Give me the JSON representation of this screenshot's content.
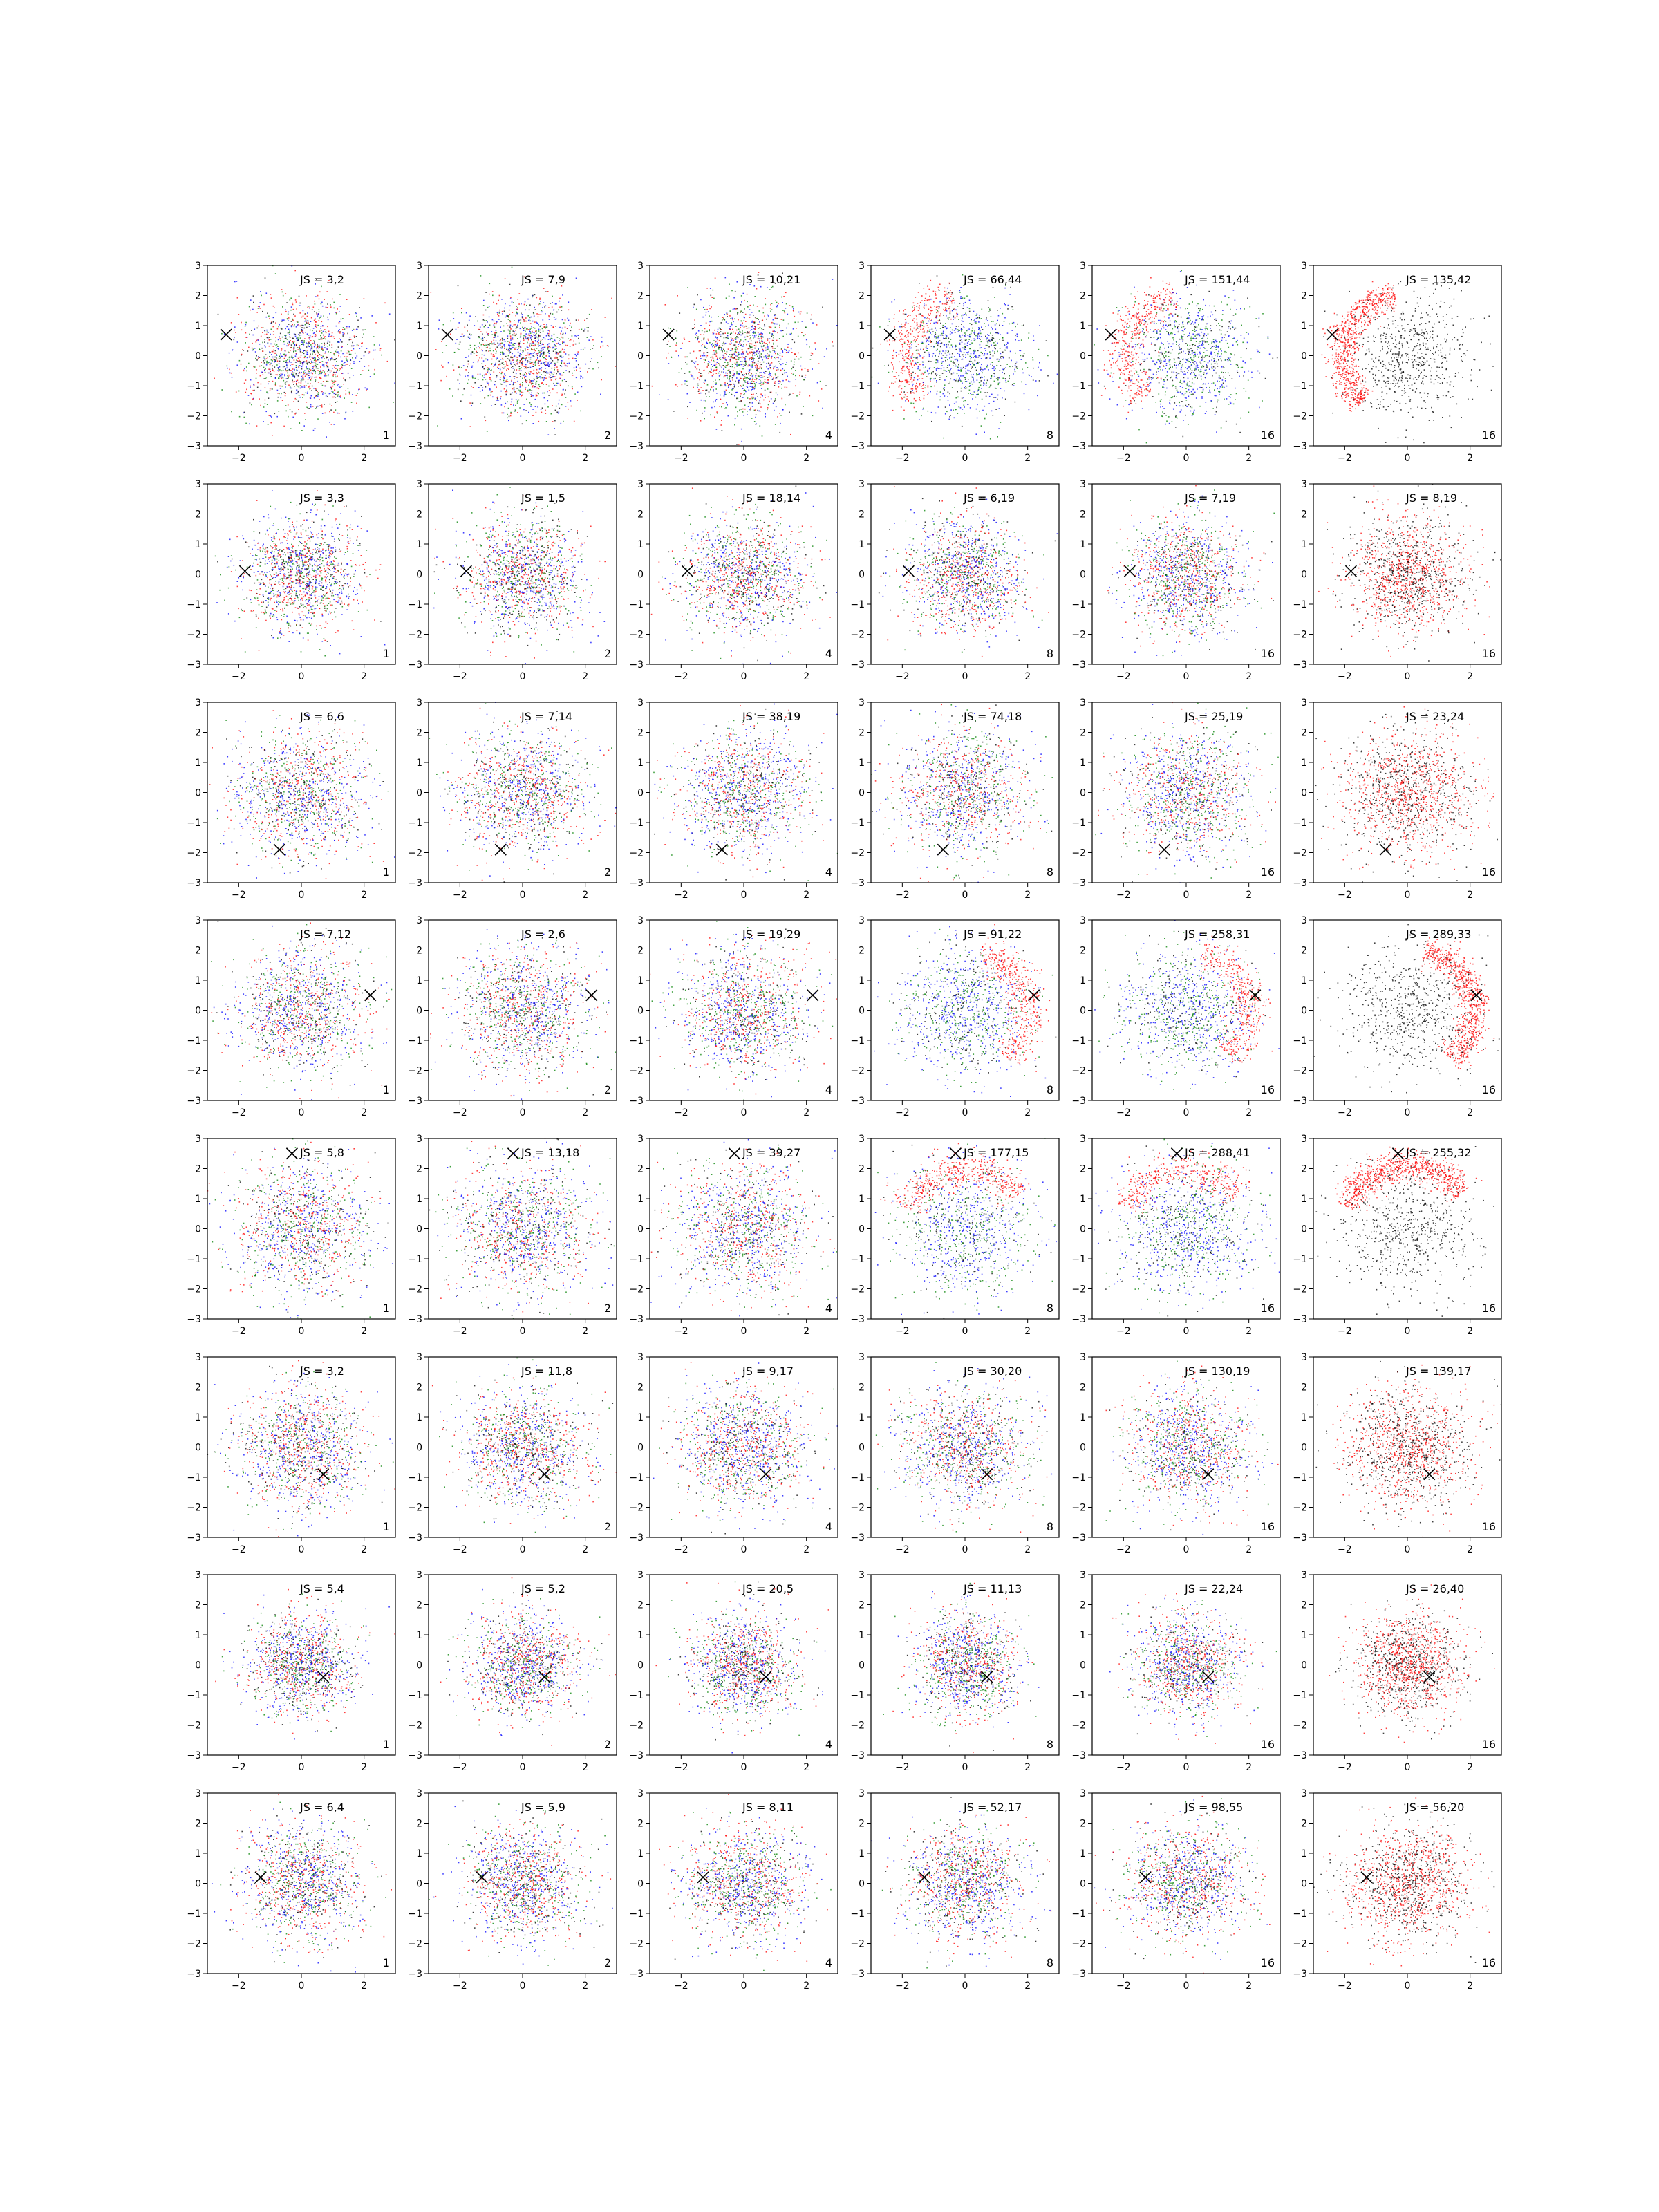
{
  "chart_data": {
    "type": "scatter",
    "grid_shape": [
      8,
      6
    ],
    "xlim": [
      -3,
      3
    ],
    "ylim": [
      -3,
      3
    ],
    "xticks": [
      -2,
      0,
      2
    ],
    "yticks": [
      -3,
      -2,
      -1,
      0,
      1,
      2,
      3
    ],
    "xtick_labels": [
      "−2",
      "0",
      "2"
    ],
    "ytick_labels": [
      "−3",
      "−2",
      "−1",
      "0",
      "1",
      "2",
      "3"
    ],
    "grid": false,
    "colors": {
      "red": "#ff0000",
      "green": "#008000",
      "blue": "#0000ff",
      "black": "#000000",
      "marker": "#000000"
    },
    "column_k": [
      "1",
      "2",
      "4",
      "8",
      "16",
      "16"
    ],
    "rows": [
      {
        "marker": [
          -2.4,
          0.7
        ],
        "spread": 1.0,
        "panels": [
          {
            "js": "JS = 3,2"
          },
          {
            "js": "JS = 7,9"
          },
          {
            "js": "JS = 10,21"
          },
          {
            "js": "JS = 66,44"
          },
          {
            "js": "JS = 151,44"
          },
          {
            "js": "JS = 135,42"
          }
        ]
      },
      {
        "marker": [
          -1.8,
          0.1
        ],
        "spread": 0.95,
        "panels": [
          {
            "js": "JS = 3,3"
          },
          {
            "js": "JS = 1,5"
          },
          {
            "js": "JS = 18,14"
          },
          {
            "js": "JS = 6,19"
          },
          {
            "js": "JS = 7,19"
          },
          {
            "js": "JS = 8,19"
          }
        ]
      },
      {
        "marker": [
          -0.7,
          -1.9
        ],
        "spread": 1.05,
        "panels": [
          {
            "js": "JS = 6,6"
          },
          {
            "js": "JS = 7,14"
          },
          {
            "js": "JS = 38,19"
          },
          {
            "js": "JS = 74,18"
          },
          {
            "js": "JS = 25,19"
          },
          {
            "js": "JS = 23,24"
          }
        ]
      },
      {
        "marker": [
          2.2,
          0.5
        ],
        "spread": 1.05,
        "panels": [
          {
            "js": "JS = 7,12"
          },
          {
            "js": "JS = 2,6"
          },
          {
            "js": "JS = 19,29"
          },
          {
            "js": "JS = 91,22"
          },
          {
            "js": "JS = 258,31"
          },
          {
            "js": "JS = 289,33"
          }
        ]
      },
      {
        "marker": [
          -0.3,
          2.5
        ],
        "spread": 1.1,
        "panels": [
          {
            "js": "JS = 5,8"
          },
          {
            "js": "JS = 13,18"
          },
          {
            "js": "JS = 39,27"
          },
          {
            "js": "JS = 177,15"
          },
          {
            "js": "JS = 288,41"
          },
          {
            "js": "JS = 255,32"
          }
        ]
      },
      {
        "marker": [
          0.7,
          -0.9
        ],
        "spread": 1.0,
        "panels": [
          {
            "js": "JS = 3,2"
          },
          {
            "js": "JS = 11,8"
          },
          {
            "js": "JS = 9,17"
          },
          {
            "js": "JS = 30,20"
          },
          {
            "js": "JS = 130,19"
          },
          {
            "js": "JS = 139,17"
          }
        ]
      },
      {
        "marker": [
          0.7,
          -0.4
        ],
        "spread": 0.85,
        "panels": [
          {
            "js": "JS = 5,4"
          },
          {
            "js": "JS = 5,2"
          },
          {
            "js": "JS = 20,5"
          },
          {
            "js": "JS = 11,13"
          },
          {
            "js": "JS = 22,24"
          },
          {
            "js": "JS = 26,40"
          }
        ]
      },
      {
        "marker": [
          -1.3,
          0.2
        ],
        "spread": 0.95,
        "panels": [
          {
            "js": "JS = 6,4"
          },
          {
            "js": "JS = 5,9"
          },
          {
            "js": "JS = 8,11"
          },
          {
            "js": "JS = 52,17"
          },
          {
            "js": "JS = 98,55"
          },
          {
            "js": "JS = 56,20"
          }
        ]
      }
    ]
  }
}
